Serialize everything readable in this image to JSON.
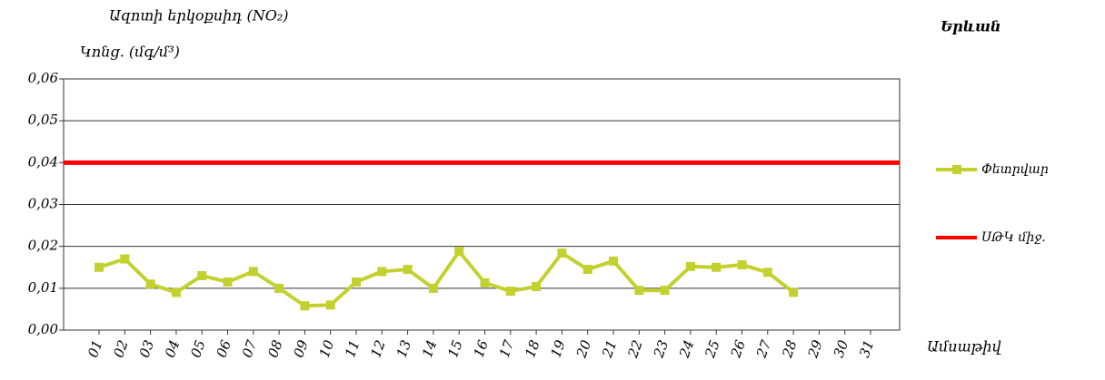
{
  "chart_data": {
    "type": "line",
    "title": "Ազոտի երկօքսիդ (NO₂)",
    "y_label": "Կոնց. (մգ/մ³)",
    "subtitle": "Երևան",
    "x_label": "Ամսաթիվ",
    "categories": [
      "01",
      "02",
      "03",
      "04",
      "05",
      "06",
      "07",
      "08",
      "09",
      "10",
      "11",
      "12",
      "13",
      "14",
      "15",
      "16",
      "17",
      "18",
      "19",
      "20",
      "21",
      "22",
      "23",
      "24",
      "25",
      "26",
      "27",
      "28",
      "29",
      "30",
      "31"
    ],
    "series": [
      {
        "name": "Փետրվար",
        "color": "#c3d12f",
        "values": [
          0.015,
          0.017,
          0.011,
          0.009,
          0.013,
          0.0115,
          0.014,
          0.01,
          0.0058,
          0.006,
          0.0115,
          0.014,
          0.0145,
          0.01,
          0.0188,
          0.0113,
          0.0093,
          0.0104,
          0.0184,
          0.0145,
          0.0165,
          0.0095,
          0.0095,
          0.0152,
          0.015,
          0.0156,
          0.0138,
          0.009,
          null,
          null,
          null
        ]
      }
    ],
    "reference_line": {
      "name": "ՍԹԿ միջ.",
      "value": 0.04,
      "color": "#ff0000"
    },
    "ylim": [
      0,
      0.06
    ],
    "yticks": [
      {
        "value": 0,
        "label": "0,00"
      },
      {
        "value": 0.01,
        "label": "0,01"
      },
      {
        "value": 0.02,
        "label": "0,02"
      },
      {
        "value": 0.03,
        "label": "0,03"
      },
      {
        "value": 0.04,
        "label": "0,04"
      },
      {
        "value": 0.05,
        "label": "0,05"
      },
      {
        "value": 0.06,
        "label": "0,06"
      }
    ],
    "grid": true
  }
}
